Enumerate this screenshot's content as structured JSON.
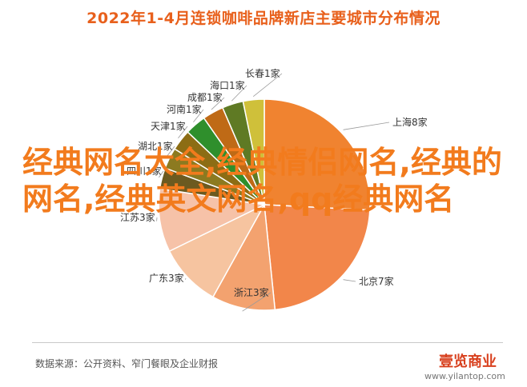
{
  "title": "2022年1-4月连锁咖啡品牌新店主要城市分布情况",
  "overlay_text": "经典网名大全,经典情侣网名,经典的网名,经典英文网名,qq经典网名",
  "source": "数据来源：公开资料、窄门餐眼及企业财报",
  "brand": {
    "name": "壹览商业",
    "url": "www.yilantop.com"
  },
  "colors": {
    "accent": "#f08330"
  },
  "chart_data": {
    "type": "pie",
    "categories": [
      "上海8家",
      "北京7家",
      "浙江3家",
      "广东3家",
      "江苏3家",
      "四川1家",
      "湖北1家",
      "天津1家",
      "河南1家",
      "成都1家",
      "海口1家",
      "长春1家"
    ],
    "values": [
      8,
      7,
      3,
      3,
      3,
      1,
      1,
      1,
      1,
      1,
      1,
      1
    ]
  }
}
